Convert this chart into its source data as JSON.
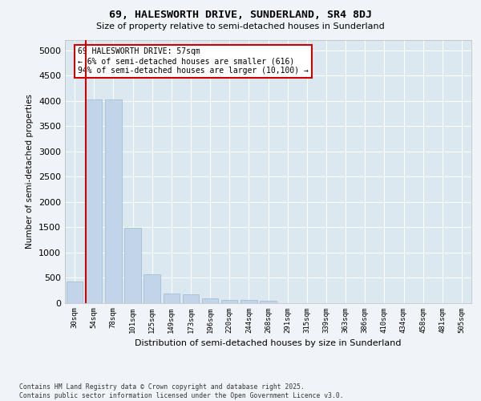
{
  "title_line1": "69, HALESWORTH DRIVE, SUNDERLAND, SR4 8DJ",
  "title_line2": "Size of property relative to semi-detached houses in Sunderland",
  "xlabel": "Distribution of semi-detached houses by size in Sunderland",
  "ylabel": "Number of semi-detached properties",
  "categories": [
    "30sqm",
    "54sqm",
    "78sqm",
    "101sqm",
    "125sqm",
    "149sqm",
    "173sqm",
    "196sqm",
    "220sqm",
    "244sqm",
    "268sqm",
    "291sqm",
    "315sqm",
    "339sqm",
    "363sqm",
    "386sqm",
    "410sqm",
    "434sqm",
    "458sqm",
    "481sqm",
    "505sqm"
  ],
  "values": [
    420,
    4020,
    4020,
    1490,
    570,
    175,
    165,
    80,
    60,
    50,
    35,
    0,
    0,
    0,
    0,
    0,
    0,
    0,
    0,
    0,
    0
  ],
  "bar_color": "#c2d4e8",
  "bar_edge_color": "#9ab8d4",
  "marker_line_color": "#cc0000",
  "annotation_text": "69 HALESWORTH DRIVE: 57sqm\n← 6% of semi-detached houses are smaller (616)\n94% of semi-detached houses are larger (10,100) →",
  "annotation_box_facecolor": "#ffffff",
  "annotation_box_edgecolor": "#cc0000",
  "ylim": [
    0,
    5200
  ],
  "yticks": [
    0,
    500,
    1000,
    1500,
    2000,
    2500,
    3000,
    3500,
    4000,
    4500,
    5000
  ],
  "bg_color": "#dce8f0",
  "fig_bg_color": "#f0f4f8",
  "footer": "Contains HM Land Registry data © Crown copyright and database right 2025.\nContains public sector information licensed under the Open Government Licence v3.0."
}
